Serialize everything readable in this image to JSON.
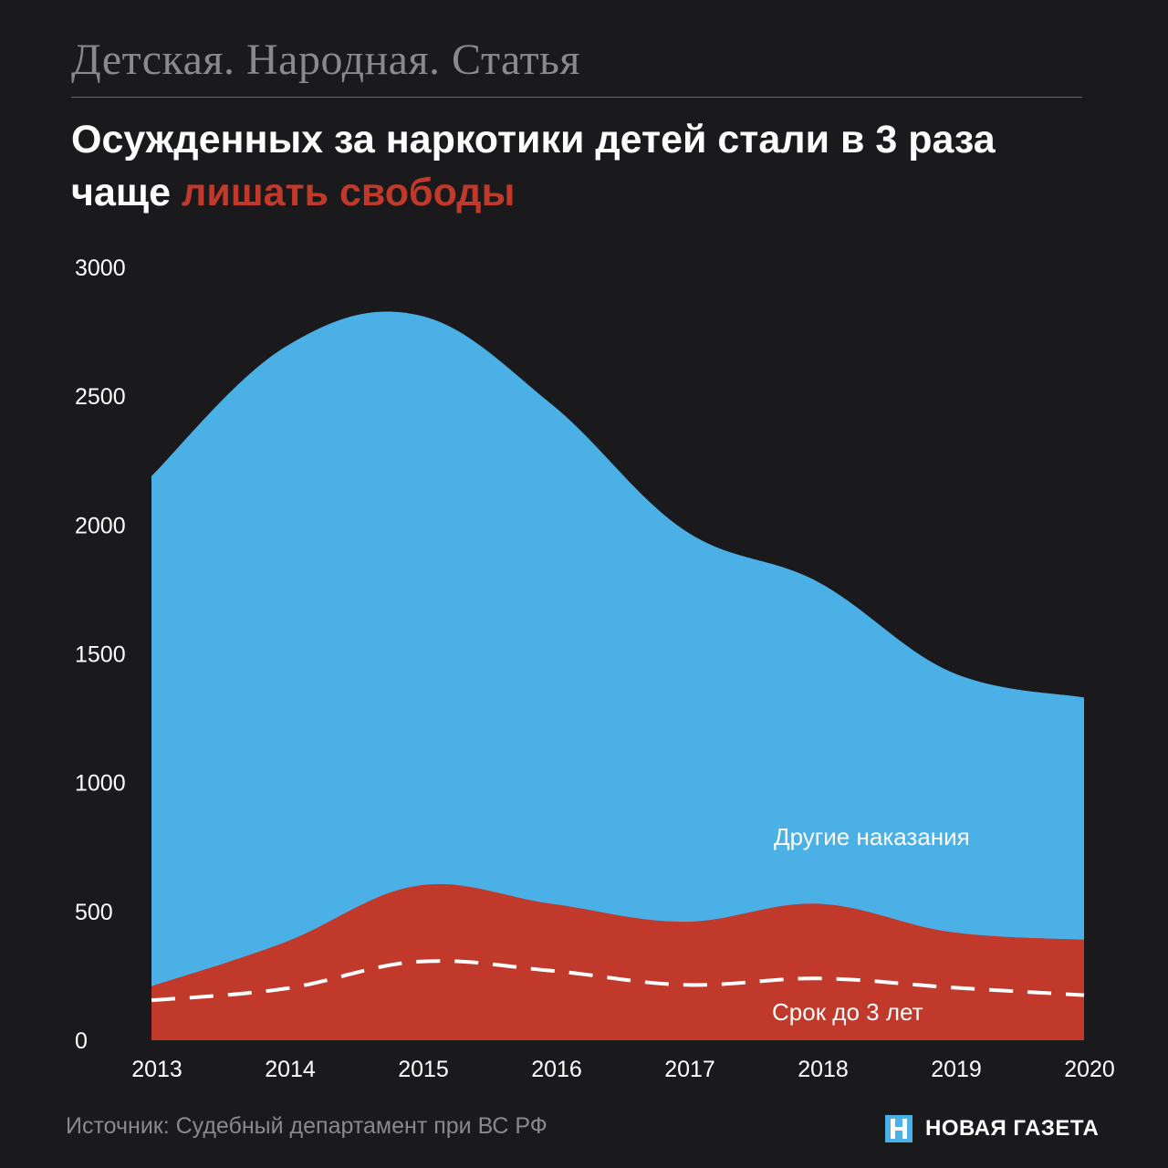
{
  "header": {
    "kicker": "Детская. Народная. Статья",
    "headline_main": "Осужденных за наркотики детей стали в 3 раза чаще",
    "headline_accent": "лишать свободы"
  },
  "footer": {
    "source": "Источник: Судебный департамент при ВС РФ",
    "brand_name": "НОВАЯ ГАЗЕТА"
  },
  "colors": {
    "background": "#1a1a1d",
    "other_punishments": "#4ab0e6",
    "imprisonment": "#c0392b",
    "accent": "#c0392b"
  },
  "chart_data": {
    "type": "area",
    "title": "",
    "xlabel": "",
    "ylabel": "",
    "ylim": [
      0,
      3000
    ],
    "yticks": [
      0,
      500,
      1000,
      1500,
      2000,
      2500,
      3000
    ],
    "x": [
      "2013",
      "2014",
      "2015",
      "2016",
      "2017",
      "2018",
      "2019",
      "2020"
    ],
    "series": [
      {
        "name": "Другие наказания",
        "kind": "total",
        "values": [
          2190,
          2690,
          2815,
          2470,
          1980,
          1780,
          1430,
          1330
        ]
      },
      {
        "name": "",
        "kind": "filled",
        "values": [
          210,
          380,
          600,
          530,
          460,
          530,
          420,
          390
        ]
      },
      {
        "name": "Срок до 3 лет",
        "kind": "dashed",
        "values": [
          155,
          200,
          305,
          270,
          215,
          240,
          205,
          175
        ]
      }
    ],
    "grid": false,
    "legend": "inline"
  }
}
